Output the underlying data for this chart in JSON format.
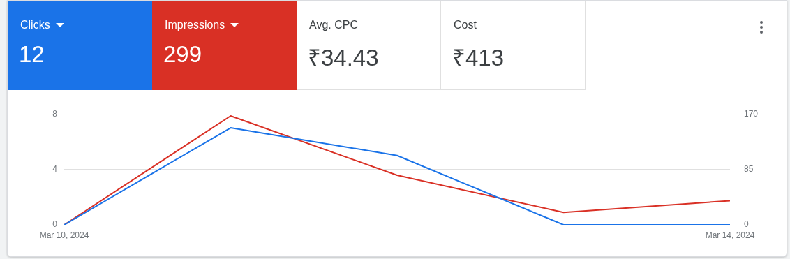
{
  "chart_data": [
    {
      "type": "other",
      "annotations": [
        "Clicks",
        "12",
        "Impressions",
        "299",
        "Avg. CPC",
        "₹34.43",
        "Cost",
        "₹413"
      ]
    },
    {
      "type": "line",
      "categories": [
        "Mar 10, 2024",
        null,
        null,
        null,
        "Mar 14, 2024"
      ],
      "series": [
        {
          "color": "#1a73e8",
          "values": [
            0,
            7,
            5,
            0,
            0
          ]
        },
        {
          "color": "#d93025",
          "values": [
            0,
            167,
            76,
            19,
            37
          ],
          "axis": "y2"
        }
      ],
      "ylim": [
        0,
        8
      ],
      "yticks": [
        0,
        4,
        8
      ],
      "y2lim": [
        0,
        170
      ],
      "y2ticks": [
        0,
        85,
        170
      ],
      "grid": "y",
      "legend": false,
      "marker": "none",
      "line_style": "solid"
    }
  ]
}
